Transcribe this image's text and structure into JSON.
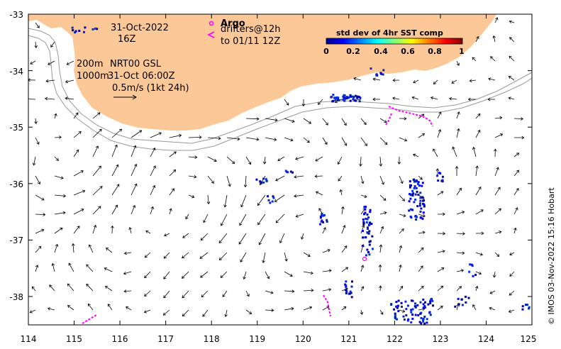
{
  "map": {
    "x_ticks": [
      "114",
      "115",
      "116",
      "117",
      "118",
      "119",
      "120",
      "121",
      "122",
      "123",
      "124",
      "125"
    ],
    "y_ticks": [
      "-33",
      "-34",
      "-35",
      "-36",
      "-37",
      "-38"
    ],
    "lon_range": [
      114,
      125
    ],
    "lat_range": [
      -38.5,
      -33
    ],
    "land_color": "#fdc897",
    "ocean_color": "#ffffff"
  },
  "annotations": {
    "date": "31-Oct-2022",
    "time": "16Z",
    "depth_200": "200m",
    "product": "NRT00 GSL",
    "depth_1000": "1000m",
    "analysis_time": "31-Oct 06:00Z",
    "scale_text": "0.5m/s (1kt 24h)"
  },
  "legend": {
    "argo_label": "Argo",
    "argo_color": "#ff00ff",
    "drifter_line1": "drifters@12h",
    "drifter_line2": "to 01/11 12Z"
  },
  "colorbar": {
    "title": "std dev of 4hr SST comp",
    "ticks": [
      "0",
      "0.2",
      "0.4",
      "0.6",
      "0.8",
      "1"
    ]
  },
  "credit": "© IMOS 03-Nov-2022 15:16 Hobart"
}
